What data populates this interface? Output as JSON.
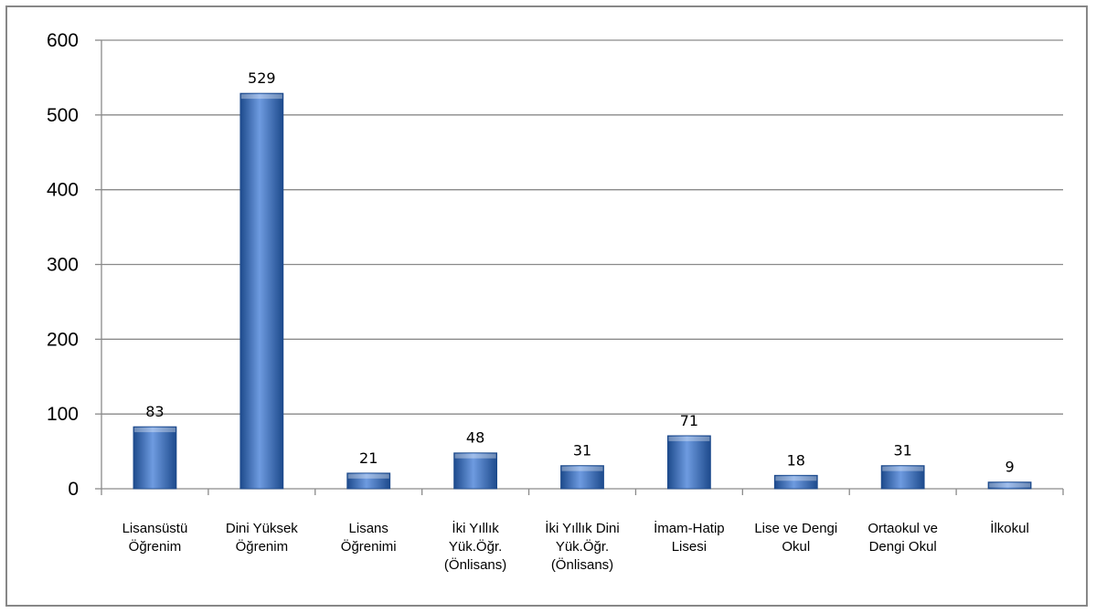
{
  "chart_data": {
    "type": "bar",
    "title": "",
    "xlabel": "",
    "ylabel": "",
    "ylim": [
      0,
      600
    ],
    "y_ticks": [
      0,
      100,
      200,
      300,
      400,
      500,
      600
    ],
    "grid": true,
    "legend": "none",
    "bar_color": "#3a6fb8",
    "bar_color_light": "#6e9be0",
    "bar_color_dark": "#1d4a8c",
    "categories": [
      [
        "Lisansüstü",
        "Öğrenim"
      ],
      [
        "Dini Yüksek",
        "Öğrenim"
      ],
      [
        "Lisans",
        "Öğrenimi"
      ],
      [
        "İki Yıllık",
        "Yük.Öğr.",
        "(Önlisans)"
      ],
      [
        "İki Yıllık Dini",
        "Yük.Öğr.",
        "(Önlisans)"
      ],
      [
        "İmam-Hatip",
        "Lisesi"
      ],
      [
        "Lise ve Dengi",
        "Okul"
      ],
      [
        "Ortaokul ve",
        "Dengi Okul"
      ],
      [
        "İlkokul"
      ]
    ],
    "values": [
      83,
      529,
      21,
      48,
      31,
      71,
      18,
      31,
      9
    ]
  }
}
